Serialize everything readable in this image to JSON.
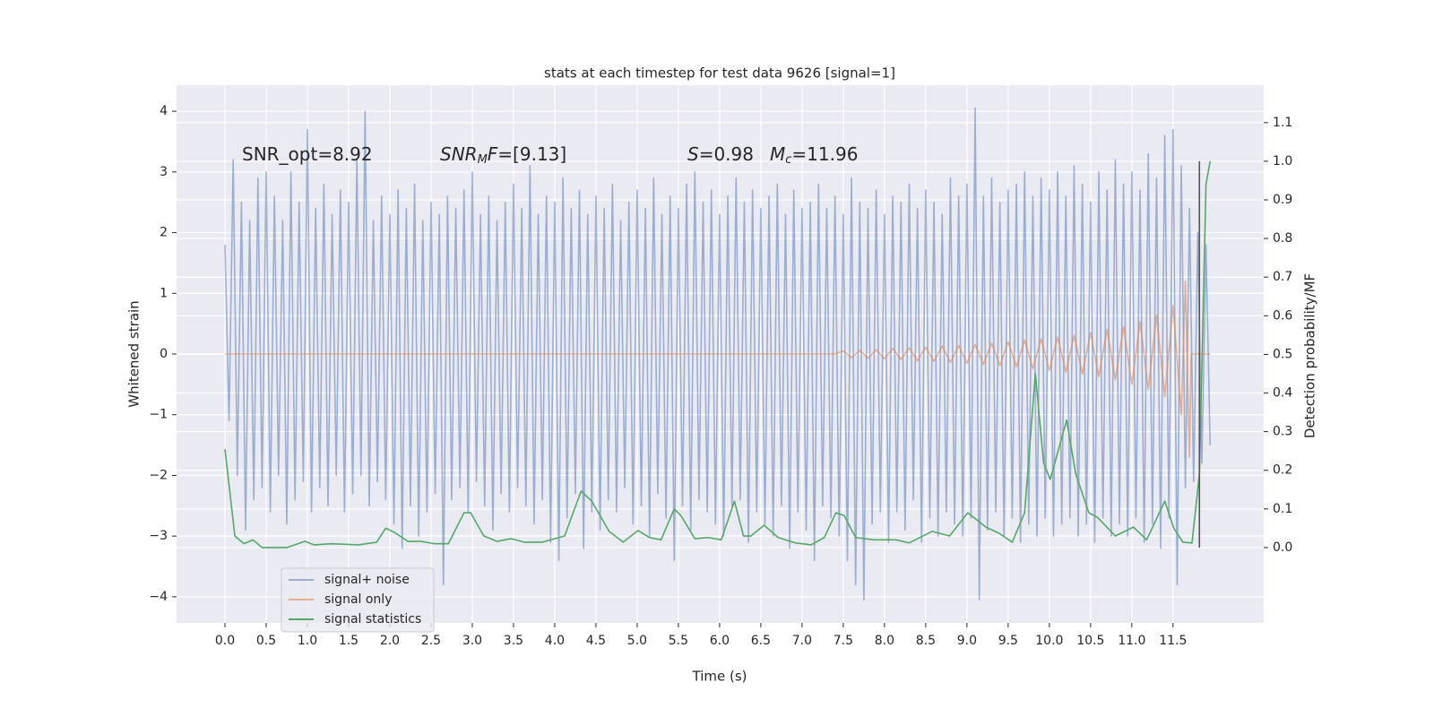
{
  "chart_data": {
    "type": "line",
    "title": "stats at each timestep for test data 9626 [signal=1]",
    "xlabel": "Time (s)",
    "ylabel": "Whitened strain",
    "y2label": "Detection probability/MF",
    "xlim": [
      -0.587,
      12.6
    ],
    "ylim": [
      -4.43,
      4.43
    ],
    "y2lim": [
      -0.195,
      1.197
    ],
    "xticks": [
      {
        "value": 0,
        "label": "0.0"
      },
      {
        "value": 0.5,
        "label": "0.5"
      },
      {
        "value": 1,
        "label": "1.0"
      },
      {
        "value": 1.5,
        "label": "1.5"
      },
      {
        "value": 2,
        "label": "2.0"
      },
      {
        "value": 2.5,
        "label": "2.5"
      },
      {
        "value": 3,
        "label": "3.0"
      },
      {
        "value": 3.5,
        "label": "3.5"
      },
      {
        "value": 4,
        "label": "4.0"
      },
      {
        "value": 4.5,
        "label": "4.5"
      },
      {
        "value": 5,
        "label": "5.0"
      },
      {
        "value": 5.5,
        "label": "5.5"
      },
      {
        "value": 6,
        "label": "6.0"
      },
      {
        "value": 6.5,
        "label": "6.5"
      },
      {
        "value": 7,
        "label": "7.0"
      },
      {
        "value": 7.5,
        "label": "7.5"
      },
      {
        "value": 8,
        "label": "8.0"
      },
      {
        "value": 8.5,
        "label": "8.5"
      },
      {
        "value": 9,
        "label": "9.0"
      },
      {
        "value": 9.5,
        "label": "9.5"
      },
      {
        "value": 10,
        "label": "10.0"
      },
      {
        "value": 10.5,
        "label": "10.5"
      },
      {
        "value": 11,
        "label": "11.0"
      },
      {
        "value": 11.5,
        "label": "11.5"
      }
    ],
    "yticks": [
      {
        "value": -4,
        "label": "−4"
      },
      {
        "value": -3,
        "label": "−3"
      },
      {
        "value": -2,
        "label": "−2"
      },
      {
        "value": -1,
        "label": "−1"
      },
      0,
      1,
      2,
      3,
      4
    ],
    "y2ticks": [
      {
        "value": 0,
        "label": "0.0"
      },
      {
        "value": 0.1,
        "label": "0.1"
      },
      {
        "value": 0.2,
        "label": "0.2"
      },
      {
        "value": 0.3,
        "label": "0.3"
      },
      {
        "value": 0.4,
        "label": "0.4"
      },
      {
        "value": 0.5,
        "label": "0.5"
      },
      {
        "value": 0.6,
        "label": "0.6"
      },
      {
        "value": 0.7,
        "label": "0.7"
      },
      {
        "value": 0.8,
        "label": "0.8"
      },
      {
        "value": 0.9,
        "label": "0.9"
      },
      {
        "value": 1.0,
        "label": "1.0"
      },
      {
        "value": 1.1,
        "label": "1.1"
      }
    ],
    "grid": true,
    "legend_loc": "lower left",
    "annotations": [
      {
        "parts": [
          {
            "text": "SNR_opt=8.92"
          }
        ]
      },
      {
        "parts": [
          {
            "text": "SNR",
            "italic": true
          },
          {
            "text": "M",
            "italic": true,
            "sub": true
          },
          {
            "text": "F",
            "italic": true
          },
          {
            "text": "=[9.13]"
          }
        ]
      },
      {
        "parts": [
          {
            "text": "S",
            "italic": true
          },
          {
            "text": "=0.98"
          }
        ]
      },
      {
        "parts": [
          {
            "text": "M",
            "italic": true
          },
          {
            "text": "c",
            "italic": true,
            "sub": true
          },
          {
            "text": "=11.96"
          }
        ]
      }
    ],
    "vline": {
      "x": 11.82,
      "ymin": 0,
      "ymax": 1,
      "color": "#555555"
    },
    "series": [
      {
        "name": "signal+ noise",
        "color": "#4c72b0",
        "opacity": 0.5,
        "x": [
          0,
          0.05,
          0.1,
          0.15,
          0.2,
          0.25,
          0.3,
          0.35,
          0.4,
          0.45,
          0.5,
          0.55,
          0.6,
          0.65,
          0.7,
          0.75,
          0.8,
          0.85,
          0.9,
          0.95,
          1,
          1.05,
          1.1,
          1.15,
          1.2,
          1.25,
          1.3,
          1.35,
          1.4,
          1.45,
          1.5,
          1.55,
          1.6,
          1.65,
          1.7,
          1.75,
          1.8,
          1.85,
          1.9,
          1.95,
          2,
          2.05,
          2.1,
          2.15,
          2.2,
          2.25,
          2.3,
          2.35,
          2.4,
          2.45,
          2.5,
          2.55,
          2.6,
          2.65,
          2.7,
          2.75,
          2.8,
          2.85,
          2.9,
          2.95,
          3,
          3.05,
          3.1,
          3.15,
          3.2,
          3.25,
          3.3,
          3.35,
          3.4,
          3.45,
          3.5,
          3.55,
          3.6,
          3.65,
          3.7,
          3.75,
          3.8,
          3.85,
          3.9,
          3.95,
          4,
          4.05,
          4.1,
          4.15,
          4.2,
          4.25,
          4.3,
          4.35,
          4.4,
          4.45,
          4.5,
          4.55,
          4.6,
          4.65,
          4.7,
          4.75,
          4.8,
          4.85,
          4.9,
          4.95,
          5,
          5.05,
          5.1,
          5.15,
          5.2,
          5.25,
          5.3,
          5.35,
          5.4,
          5.45,
          5.5,
          5.55,
          5.6,
          5.65,
          5.7,
          5.75,
          5.8,
          5.85,
          5.9,
          5.95,
          6,
          6.05,
          6.1,
          6.15,
          6.2,
          6.25,
          6.3,
          6.35,
          6.4,
          6.45,
          6.5,
          6.55,
          6.6,
          6.65,
          6.7,
          6.75,
          6.8,
          6.85,
          6.9,
          6.95,
          7,
          7.05,
          7.1,
          7.15,
          7.2,
          7.25,
          7.3,
          7.35,
          7.4,
          7.45,
          7.5,
          7.55,
          7.6,
          7.65,
          7.7,
          7.75,
          7.8,
          7.85,
          7.9,
          7.95,
          8,
          8.05,
          8.1,
          8.15,
          8.2,
          8.25,
          8.3,
          8.35,
          8.4,
          8.45,
          8.5,
          8.55,
          8.6,
          8.65,
          8.7,
          8.75,
          8.8,
          8.85,
          8.9,
          8.95,
          9,
          9.05,
          9.1,
          9.15,
          9.2,
          9.25,
          9.3,
          9.35,
          9.4,
          9.45,
          9.5,
          9.55,
          9.6,
          9.65,
          9.7,
          9.75,
          9.8,
          9.85,
          9.9,
          9.95,
          10,
          10.05,
          10.1,
          10.15,
          10.2,
          10.25,
          10.3,
          10.35,
          10.4,
          10.45,
          10.5,
          10.55,
          10.6,
          10.65,
          10.7,
          10.75,
          10.8,
          10.85,
          10.9,
          10.95,
          11,
          11.05,
          11.1,
          11.15,
          11.2,
          11.25,
          11.3,
          11.35,
          11.4,
          11.45,
          11.5,
          11.55,
          11.6,
          11.65,
          11.7,
          11.75,
          11.8,
          11.85,
          11.9,
          11.95
        ],
        "values": [
          1.8,
          -1.1,
          3.2,
          -2.0,
          2.5,
          -2.9,
          2.2,
          -2.4,
          2.9,
          -2.2,
          3.0,
          -2.6,
          2.6,
          -2.0,
          2.2,
          -2.8,
          3.0,
          -2.4,
          2.5,
          -2.1,
          3.7,
          -2.6,
          2.4,
          -2.2,
          2.8,
          -2.5,
          2.3,
          -2.0,
          2.7,
          -2.6,
          2.5,
          -2.3,
          3.2,
          -2.0,
          4.0,
          -2.5,
          2.2,
          -2.1,
          2.6,
          -2.4,
          2.3,
          -2.8,
          2.7,
          -3.2,
          2.4,
          -2.5,
          2.8,
          -3.0,
          2.2,
          -2.6,
          2.5,
          -2.3,
          2.3,
          -3.8,
          2.6,
          -2.4,
          2.4,
          -2.2,
          2.7,
          -2.6,
          3.0,
          -2.1,
          2.3,
          -2.5,
          2.6,
          -2.9,
          2.2,
          -2.3,
          2.5,
          -2.6,
          2.8,
          -2.2,
          2.4,
          -2.5,
          3.1,
          -2.8,
          2.3,
          -2.4,
          2.6,
          -3.1,
          2.5,
          -3.4,
          2.9,
          -2.7,
          2.4,
          -2.3,
          2.7,
          -3.2,
          2.3,
          -2.6,
          2.6,
          -2.9,
          2.4,
          -2.4,
          2.8,
          -2.6,
          2.2,
          -2.2,
          2.5,
          -2.8,
          2.7,
          -2.5,
          2.4,
          -3.0,
          2.9,
          -2.3,
          2.3,
          -2.7,
          2.6,
          -3.4,
          2.4,
          -2.5,
          2.8,
          -2.9,
          3.0,
          -2.4,
          2.5,
          -2.6,
          2.7,
          -2.8,
          2.3,
          -3.0,
          2.6,
          -2.5,
          2.9,
          -2.4,
          2.5,
          -3.1,
          2.7,
          -2.6,
          2.4,
          -2.8,
          2.6,
          -3.0,
          2.8,
          -2.5,
          2.3,
          -3.2,
          2.7,
          -2.6,
          2.4,
          -2.9,
          2.5,
          -3.4,
          2.8,
          -2.5,
          2.4,
          -2.7,
          2.6,
          -3.0,
          2.3,
          -3.4,
          2.9,
          -3.8,
          2.5,
          -4.05,
          2.4,
          -2.8,
          2.7,
          -2.6,
          2.3,
          -3.1,
          2.6,
          -2.6,
          2.5,
          -2.9,
          2.8,
          -2.4,
          2.4,
          -3.1,
          2.7,
          -2.7,
          2.5,
          -3.0,
          2.3,
          -2.6,
          2.9,
          -2.8,
          2.6,
          -3.0,
          2.8,
          -2.7,
          4.05,
          -4.05,
          2.6,
          -2.9,
          2.9,
          -2.6,
          2.5,
          -3.0,
          2.7,
          -2.7,
          2.8,
          -3.1,
          3.0,
          -2.8,
          2.6,
          -3.0,
          2.9,
          -2.7,
          2.7,
          -3.0,
          3.0,
          -2.8,
          2.6,
          -2.7,
          3.1,
          -3.0,
          2.8,
          -2.8,
          2.5,
          -3.1,
          3.0,
          -2.7,
          2.7,
          -3.0,
          3.2,
          -2.8,
          2.8,
          -3.0,
          3.0,
          -2.7,
          2.7,
          -3.1,
          3.3,
          -2.8,
          2.9,
          -3.2,
          3.6,
          -2.7,
          3.7,
          -3.8,
          3.1,
          -2.2,
          2.4,
          -2.1,
          2.0,
          -1.8,
          1.8,
          -1.5
        ]
      },
      {
        "name": "signal only",
        "color": "#dd8452",
        "opacity": 0.6,
        "x": [
          0,
          7.4,
          7.5,
          7.6,
          7.7,
          7.8,
          7.9,
          8.0,
          8.1,
          8.2,
          8.3,
          8.4,
          8.5,
          8.6,
          8.7,
          8.8,
          8.9,
          9.0,
          9.1,
          9.2,
          9.3,
          9.4,
          9.5,
          9.6,
          9.7,
          9.8,
          9.9,
          10.0,
          10.1,
          10.2,
          10.3,
          10.4,
          10.5,
          10.6,
          10.7,
          10.8,
          10.9,
          11.0,
          11.1,
          11.2,
          11.3,
          11.4,
          11.5,
          11.6,
          11.65,
          11.7,
          11.72,
          11.95
        ],
        "values": [
          0,
          0,
          0.05,
          -0.06,
          0.06,
          -0.07,
          0.07,
          -0.08,
          0.09,
          -0.09,
          0.1,
          -0.11,
          0.11,
          -0.12,
          0.13,
          -0.14,
          0.14,
          -0.15,
          0.16,
          -0.17,
          0.18,
          -0.19,
          0.2,
          -0.21,
          0.23,
          -0.24,
          0.25,
          -0.27,
          0.28,
          -0.3,
          0.31,
          -0.33,
          0.35,
          -0.37,
          0.4,
          -0.42,
          0.45,
          -0.5,
          0.53,
          -0.58,
          0.64,
          -0.7,
          0.8,
          -1.0,
          1.2,
          -1.7,
          0,
          0
        ]
      },
      {
        "name": "signal statistics",
        "color": "#55a868",
        "opacity": 1,
        "axis": "y2",
        "x": [
          0,
          0.12,
          0.23,
          0.34,
          0.45,
          0.75,
          0.97,
          1.08,
          1.29,
          1.62,
          1.84,
          1.95,
          2.05,
          2.22,
          2.38,
          2.54,
          2.71,
          2.9,
          2.98,
          3.14,
          3.3,
          3.47,
          3.63,
          3.85,
          4.12,
          4.32,
          4.45,
          4.66,
          4.83,
          5.01,
          5.15,
          5.29,
          5.45,
          5.53,
          5.7,
          5.86,
          6.02,
          6.18,
          6.29,
          6.38,
          6.54,
          6.71,
          6.92,
          7.11,
          7.27,
          7.41,
          7.51,
          7.65,
          7.87,
          8.14,
          8.3,
          8.58,
          8.79,
          9.01,
          9.23,
          9.39,
          9.55,
          9.7,
          9.83,
          9.93,
          10.01,
          10.21,
          10.32,
          10.48,
          10.59,
          10.8,
          11.02,
          11.18,
          11.4,
          11.51,
          11.62,
          11.73,
          11.82,
          11.9,
          11.95
        ],
        "values": [
          0.255,
          0.03,
          0.01,
          0.02,
          0.0,
          0.0,
          0.016,
          0.007,
          0.01,
          0.007,
          0.014,
          0.05,
          0.04,
          0.016,
          0.016,
          0.01,
          0.01,
          0.09,
          0.09,
          0.03,
          0.016,
          0.023,
          0.014,
          0.014,
          0.03,
          0.146,
          0.12,
          0.042,
          0.014,
          0.044,
          0.026,
          0.02,
          0.1,
          0.083,
          0.023,
          0.026,
          0.02,
          0.12,
          0.03,
          0.03,
          0.058,
          0.026,
          0.012,
          0.007,
          0.026,
          0.09,
          0.083,
          0.026,
          0.02,
          0.02,
          0.012,
          0.042,
          0.03,
          0.09,
          0.053,
          0.037,
          0.014,
          0.09,
          0.45,
          0.22,
          0.176,
          0.33,
          0.19,
          0.09,
          0.077,
          0.03,
          0.053,
          0.02,
          0.12,
          0.05,
          0.014,
          0.012,
          0.19,
          0.94,
          1.0
        ]
      }
    ]
  }
}
